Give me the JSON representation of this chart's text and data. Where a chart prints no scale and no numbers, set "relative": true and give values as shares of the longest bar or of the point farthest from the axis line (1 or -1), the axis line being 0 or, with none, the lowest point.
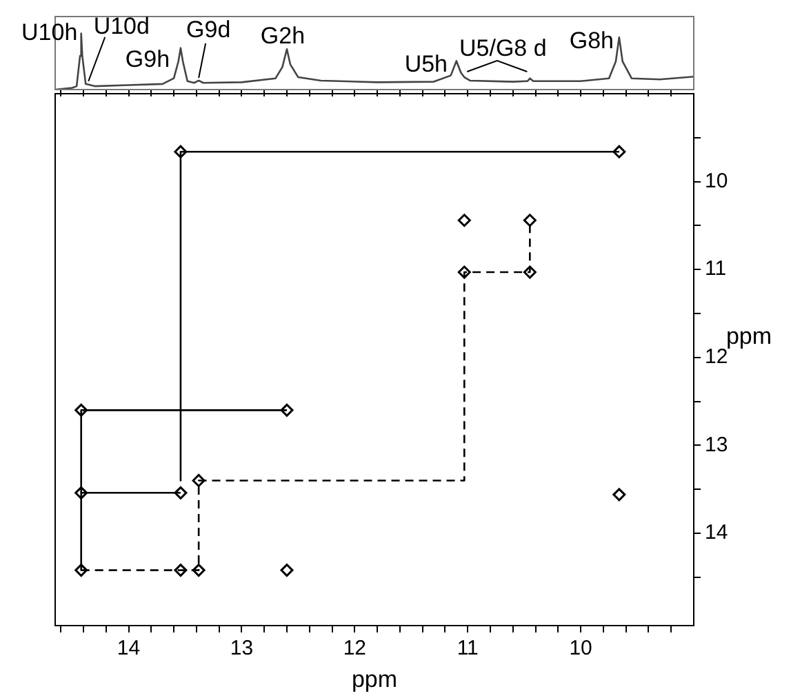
{
  "chart_data": [
    {
      "type": "line",
      "relative": true,
      "tick_labels": false,
      "xlim": [
        14.65,
        9.0
      ],
      "grid": false,
      "legend": false,
      "marker": "none",
      "line_style": "solid",
      "xticks": [
        {
          "value": 14.6,
          "label": null
        },
        {
          "value": 14.4,
          "label": null
        },
        {
          "value": 14.2,
          "label": null
        },
        14,
        {
          "value": 13.8,
          "label": null
        },
        {
          "value": 13.6,
          "label": null
        },
        {
          "value": 13.4,
          "label": null
        },
        {
          "value": 13.2,
          "label": null
        },
        13,
        {
          "value": 12.8,
          "label": null
        },
        {
          "value": 12.6,
          "label": null
        },
        {
          "value": 12.4,
          "label": null
        },
        {
          "value": 12.2,
          "label": null
        },
        12,
        {
          "value": 11.8,
          "label": null
        },
        {
          "value": 11.6,
          "label": null
        },
        {
          "value": 11.4,
          "label": null
        },
        {
          "value": 11.2,
          "label": null
        },
        11,
        {
          "value": 10.8,
          "label": null
        },
        {
          "value": 10.6,
          "label": null
        },
        {
          "value": 10.4,
          "label": null
        },
        {
          "value": 10.2,
          "label": null
        },
        10,
        {
          "value": 9.8,
          "label": null
        },
        {
          "value": 9.6,
          "label": null
        },
        {
          "value": 9.4,
          "label": null
        },
        {
          "value": 9.2,
          "label": null
        }
      ],
      "x": [
        14.65,
        14.5,
        14.46,
        14.43,
        14.42,
        14.41,
        14.38,
        14.3,
        14.0,
        13.7,
        13.6,
        13.56,
        13.54,
        13.52,
        13.48,
        13.42,
        13.38,
        13.34,
        13.0,
        12.7,
        12.64,
        12.6,
        12.57,
        12.5,
        12.3,
        11.8,
        11.3,
        11.15,
        11.1,
        11.06,
        11.03,
        10.98,
        10.6,
        10.47,
        10.45,
        10.42,
        10.0,
        9.75,
        9.69,
        9.66,
        9.63,
        9.55,
        9.3,
        9.0
      ],
      "series": [
        {
          "color": "#444444",
          "values": [
            0,
            0.03,
            0.06,
            0.6,
            1,
            0.6,
            0.1,
            0.06,
            0.08,
            0.1,
            0.2,
            0.5,
            0.74,
            0.5,
            0.15,
            0.12,
            0.16,
            0.12,
            0.13,
            0.2,
            0.4,
            0.72,
            0.45,
            0.22,
            0.16,
            0.13,
            0.14,
            0.25,
            0.51,
            0.3,
            0.22,
            0.16,
            0.14,
            0.15,
            0.2,
            0.15,
            0.15,
            0.2,
            0.5,
            0.93,
            0.5,
            0.2,
            0.18,
            0.23
          ]
        }
      ],
      "annotations": [
        {
          "text": "U10h",
          "x": 14.42,
          "y": 1
        },
        {
          "text": "U10d",
          "x": 14.38,
          "y": 0.1
        },
        {
          "text": "G9h",
          "x": 13.54,
          "y": 0.74
        },
        {
          "text": "G9d",
          "x": 13.38,
          "y": 0.16
        },
        {
          "text": "G2h",
          "x": 12.6,
          "y": 0.72
        },
        {
          "text": "U5h",
          "x": 11.1,
          "y": 0.51
        },
        {
          "text": "U5/G8 d",
          "x": 11.03,
          "y": 0.22
        },
        {
          "text": "G8h",
          "x": 9.66,
          "y": 0.93
        }
      ]
    },
    {
      "type": "scatter",
      "xlabel": "ppm",
      "ylabel": "ppm",
      "xlim": [
        14.65,
        9.0
      ],
      "ylim": [
        15.05,
        9.0
      ],
      "grid": false,
      "legend": false,
      "xticks": [
        {
          "value": 14.6,
          "label": null
        },
        {
          "value": 14.4,
          "label": null
        },
        {
          "value": 14.2,
          "label": null
        },
        14,
        {
          "value": 13.8,
          "label": null
        },
        {
          "value": 13.6,
          "label": null
        },
        {
          "value": 13.4,
          "label": null
        },
        {
          "value": 13.2,
          "label": null
        },
        13,
        {
          "value": 12.8,
          "label": null
        },
        {
          "value": 12.6,
          "label": null
        },
        {
          "value": 12.4,
          "label": null
        },
        {
          "value": 12.2,
          "label": null
        },
        12,
        {
          "value": 11.8,
          "label": null
        },
        {
          "value": 11.6,
          "label": null
        },
        {
          "value": 11.4,
          "label": null
        },
        {
          "value": 11.2,
          "label": null
        },
        11,
        {
          "value": 10.8,
          "label": null
        },
        {
          "value": 10.6,
          "label": null
        },
        {
          "value": 10.4,
          "label": null
        },
        {
          "value": 10.2,
          "label": null
        },
        10,
        {
          "value": 9.8,
          "label": null
        },
        {
          "value": 9.6,
          "label": null
        },
        {
          "value": 9.4,
          "label": null
        },
        {
          "value": 9.2,
          "label": null
        }
      ],
      "yticks": [
        {
          "value": 9.5,
          "label": null
        },
        10,
        {
          "value": 10.5,
          "label": null
        },
        11,
        {
          "value": 11.5,
          "label": null
        },
        12,
        {
          "value": 12.5,
          "label": null
        },
        13,
        {
          "value": 13.5,
          "label": null
        },
        14,
        {
          "value": 14.5,
          "label": null
        }
      ],
      "series": [
        {
          "color": "#000000",
          "marker": "diamond",
          "x": [
            9.66,
            13.54,
            11.03,
            10.45,
            11.03,
            10.45,
            12.6,
            14.42,
            13.38,
            14.42,
            13.54,
            9.66,
            14.42,
            13.54,
            13.38,
            12.6
          ],
          "values": [
            9.66,
            9.66,
            10.44,
            10.44,
            11.03,
            11.03,
            12.6,
            12.6,
            13.4,
            13.54,
            13.54,
            13.56,
            14.42,
            14.42,
            14.42,
            14.42
          ]
        },
        {
          "type": "line",
          "color": "#000000",
          "marker": "none",
          "line_style": "solid",
          "x": [
            9.66,
            13.54,
            13.54
          ],
          "values": [
            9.66,
            9.66,
            13.4
          ]
        },
        {
          "type": "line",
          "color": "#000000",
          "marker": "none",
          "line_style": "solid",
          "x": [
            12.6,
            14.42,
            14.42
          ],
          "values": [
            12.6,
            12.6,
            14.42
          ]
        },
        {
          "type": "line",
          "color": "#000000",
          "marker": "none",
          "line_style": "solid",
          "x": [
            14.42,
            13.54
          ],
          "values": [
            13.54,
            13.54
          ]
        },
        {
          "type": "line",
          "color": "#000000",
          "marker": "none",
          "line_style": "dashed",
          "x": [
            14.42,
            13.38,
            13.38,
            11.03,
            11.03,
            10.45,
            10.45
          ],
          "values": [
            14.42,
            14.42,
            13.4,
            13.4,
            11.03,
            11.03,
            10.44
          ]
        }
      ]
    }
  ]
}
